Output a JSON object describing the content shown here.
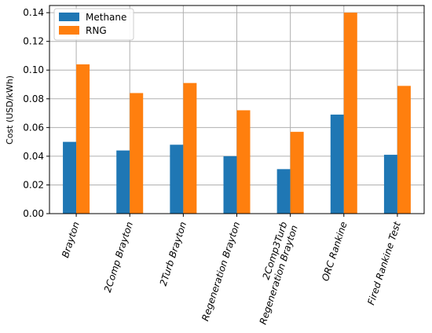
{
  "chart_data": {
    "type": "bar",
    "categories": [
      [
        "Brayton"
      ],
      [
        "2Comp Brayton"
      ],
      [
        "2Turb Brayton"
      ],
      [
        "Regeneration Brayton"
      ],
      [
        "2Comp3Turb",
        "Regeneration Brayton"
      ],
      [
        "ORC Rankine"
      ],
      [
        "Fired Rankine Test"
      ]
    ],
    "series": [
      {
        "name": "Methane",
        "color": "#1f77b4",
        "values": [
          0.05,
          0.044,
          0.048,
          0.04,
          0.031,
          0.069,
          0.041
        ]
      },
      {
        "name": "RNG",
        "color": "#ff7f0e",
        "values": [
          0.104,
          0.084,
          0.091,
          0.072,
          0.057,
          0.14,
          0.089
        ]
      }
    ],
    "xlabel": "",
    "ylabel": "Cost (USD/kWh)",
    "ylim": [
      0,
      0.145
    ],
    "yticks": [
      "0.00",
      "0.02",
      "0.04",
      "0.06",
      "0.08",
      "0.10",
      "0.12",
      "0.14"
    ],
    "grid": true,
    "legend_position": "top-left"
  }
}
